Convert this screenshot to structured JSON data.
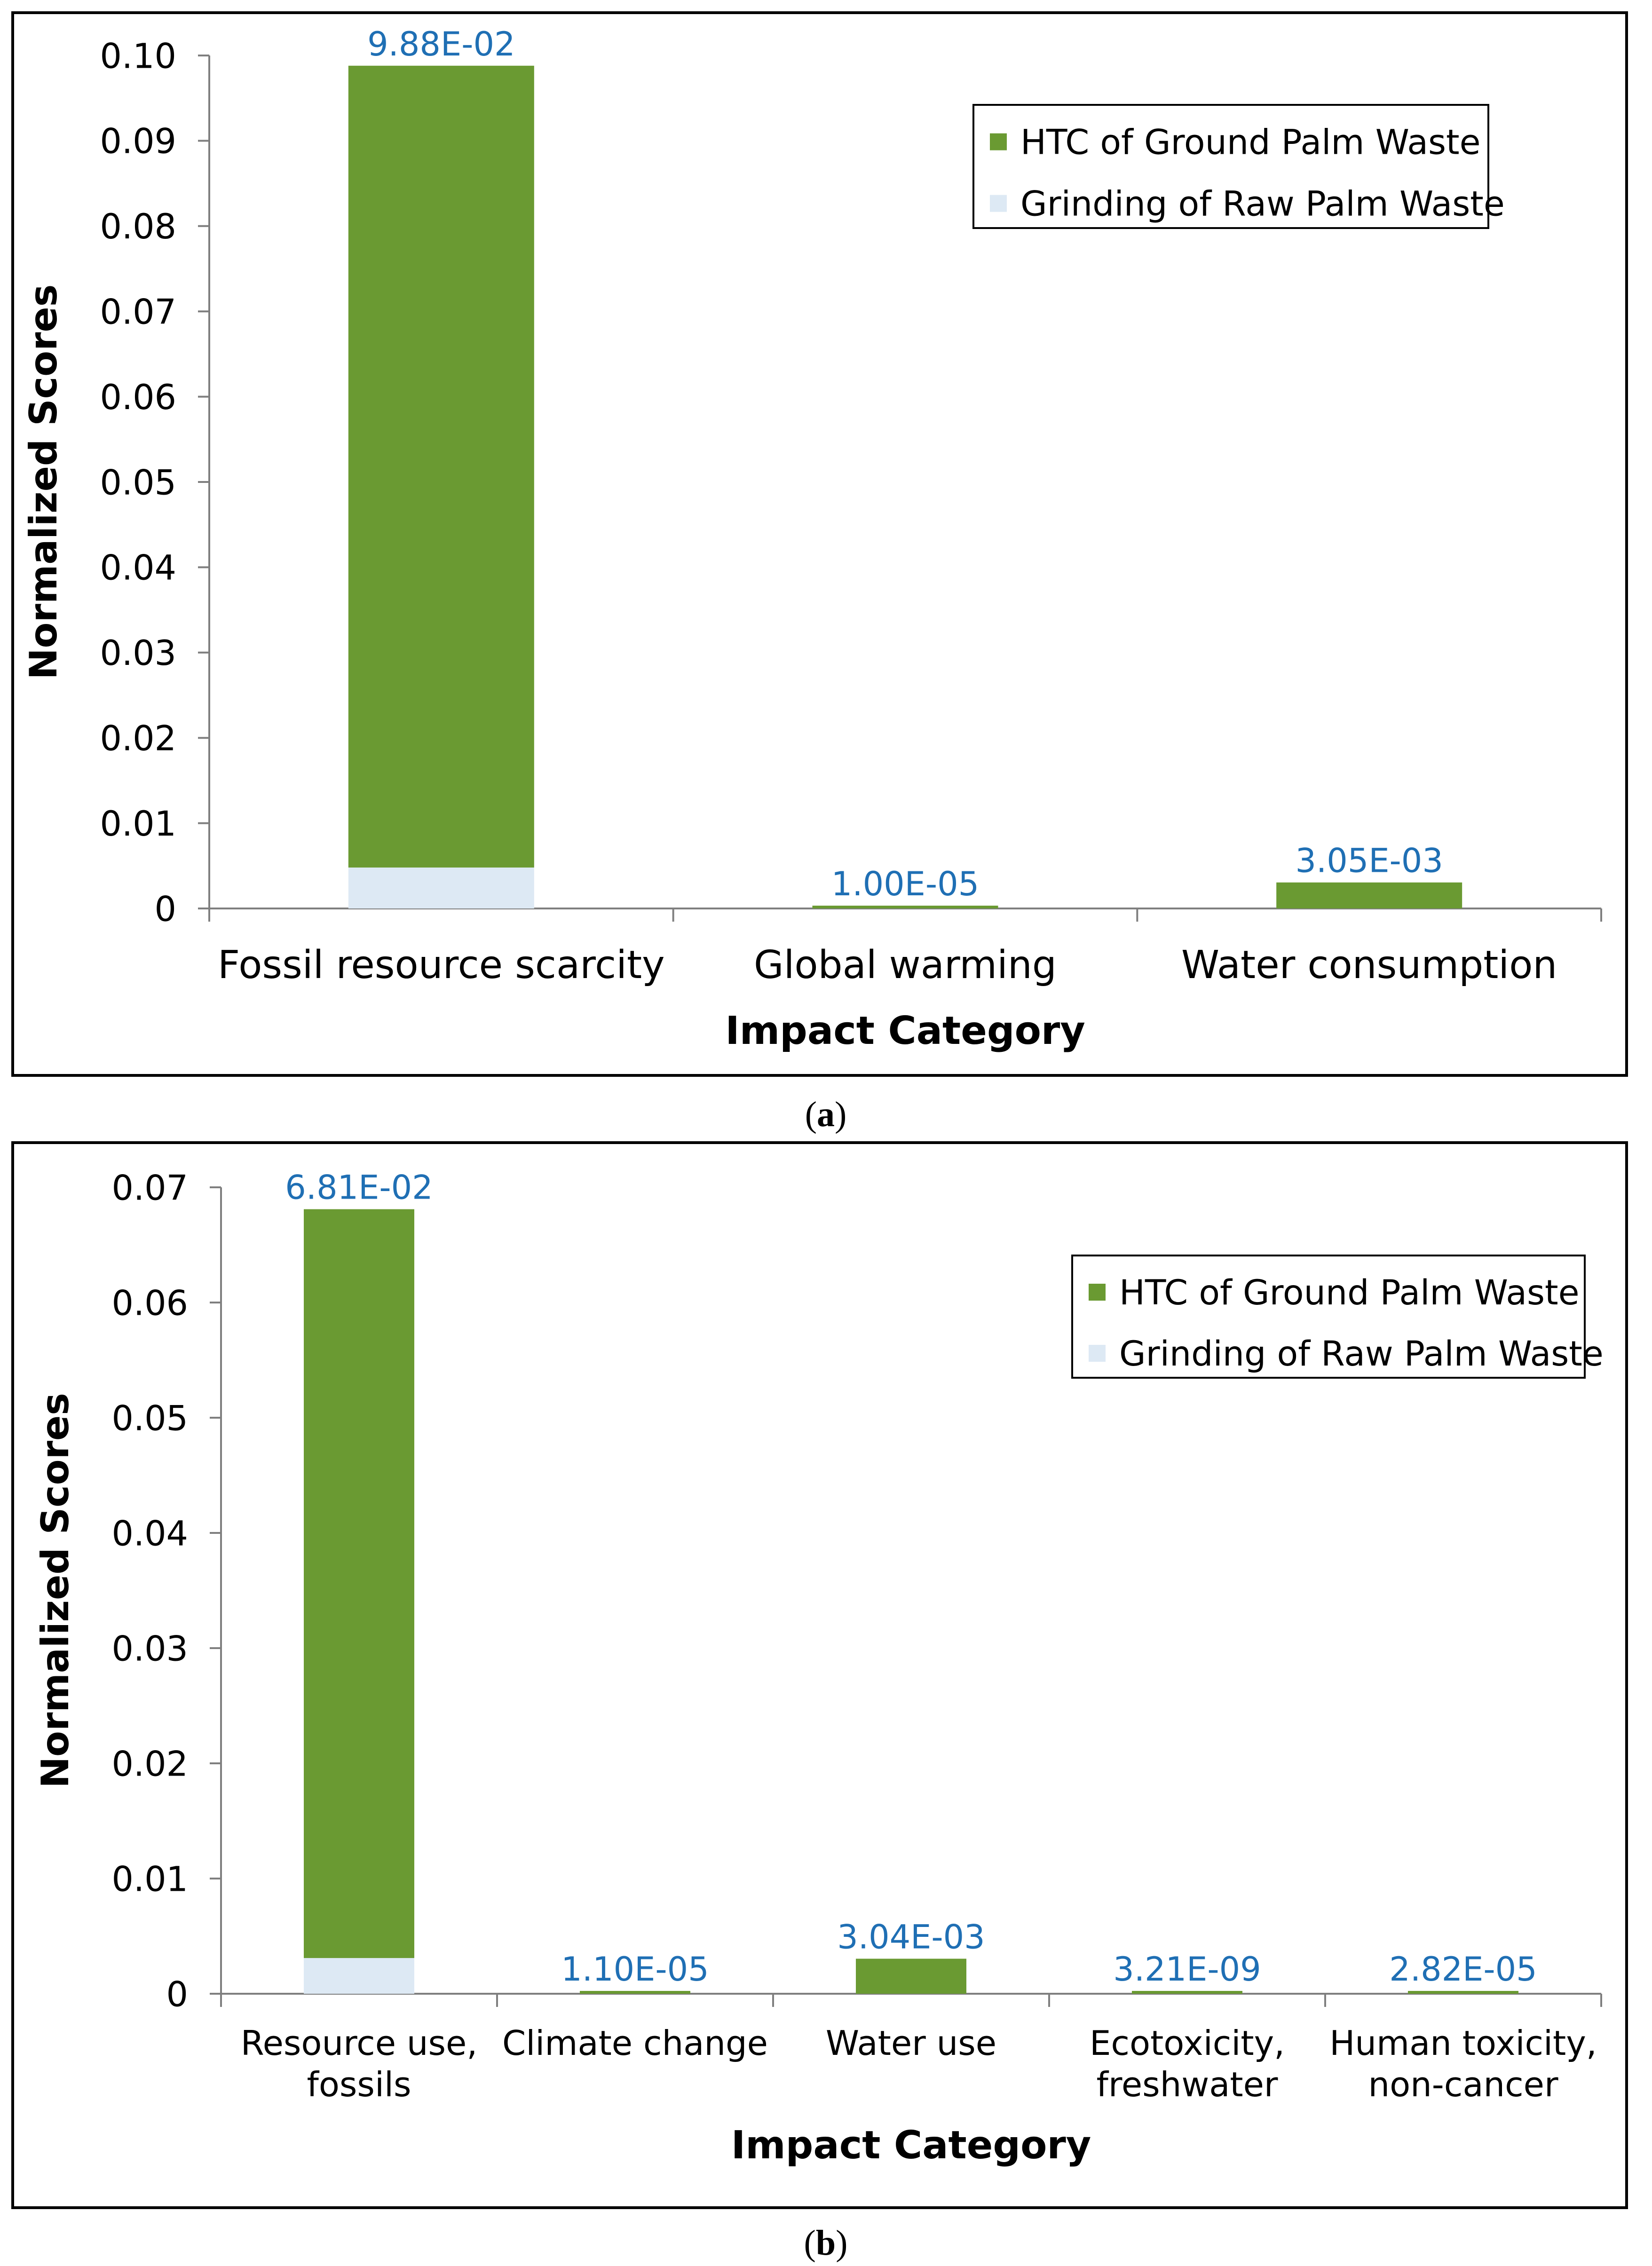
{
  "colors": {
    "htc": "#6a9a32",
    "grinding": "#dde9f4",
    "label": "#1f6fb4",
    "axis": "#7f7f7f"
  },
  "chart_data": [
    {
      "id": "a",
      "type": "bar",
      "stacked": true,
      "caption": "a",
      "xlabel": "Impact Category",
      "ylabel": "Normalized Scores",
      "ylim": [
        0,
        0.1
      ],
      "yticks": [
        "0",
        "0.01",
        "0.02",
        "0.03",
        "0.04",
        "0.05",
        "0.06",
        "0.07",
        "0.08",
        "0.09",
        "0.10"
      ],
      "categories": [
        [
          "Fossil resource scarcity"
        ],
        [
          "Global warming"
        ],
        [
          "Water consumption"
        ]
      ],
      "series": [
        {
          "name": "Grinding of Raw Palm Waste",
          "values": [
            0.0048,
            0.0,
            0.0
          ]
        },
        {
          "name": "HTC of Ground Palm Waste",
          "values": [
            0.094,
            1e-05,
            0.00305
          ]
        }
      ],
      "data_labels": [
        "9.88E-02",
        "1.00E-05",
        "3.05E-03"
      ],
      "legend": [
        "HTC of Ground Palm Waste",
        "Grinding of Raw Palm Waste"
      ],
      "legend_position": "top-right"
    },
    {
      "id": "b",
      "type": "bar",
      "stacked": true,
      "caption": "b",
      "xlabel": "Impact Category",
      "ylabel": "Normalized Scores",
      "ylim": [
        0,
        0.07
      ],
      "yticks": [
        "0",
        "0.01",
        "0.02",
        "0.03",
        "0.04",
        "0.05",
        "0.06",
        "0.07"
      ],
      "categories": [
        [
          "Resource use,",
          "fossils"
        ],
        [
          "Climate change"
        ],
        [
          "Water use"
        ],
        [
          "Ecotoxicity,",
          "freshwater"
        ],
        [
          "Human toxicity,",
          "non-cancer"
        ]
      ],
      "series": [
        {
          "name": "Grinding of Raw Palm Waste",
          "values": [
            0.0031,
            0.0,
            0.0,
            0.0,
            0.0
          ]
        },
        {
          "name": "HTC of Ground Palm Waste",
          "values": [
            0.065,
            1.1e-05,
            0.00304,
            3.21e-09,
            2.82e-05
          ]
        }
      ],
      "data_labels": [
        "6.81E-02",
        "1.10E-05",
        "3.04E-03",
        "3.21E-09",
        "2.82E-05"
      ],
      "legend": [
        "HTC of Ground Palm Waste",
        "Grinding of Raw Palm Waste"
      ],
      "legend_position": "top-right"
    }
  ]
}
